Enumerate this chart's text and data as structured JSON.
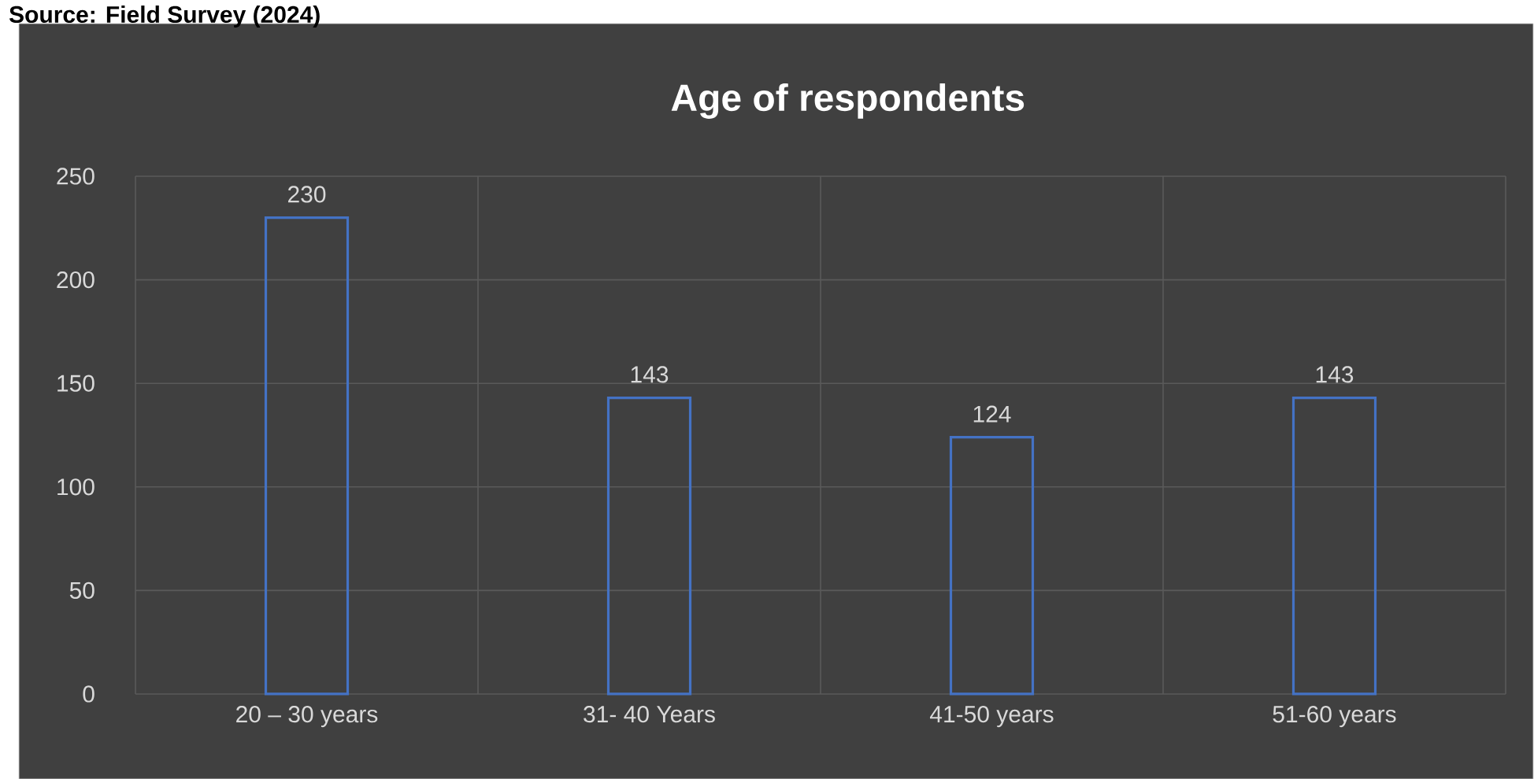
{
  "chart_data": {
    "type": "bar",
    "title": "Age of respondents",
    "annotations": [
      "Source: Field Survey (2024)"
    ],
    "categories": [
      "20 – 30 years",
      "31- 40 Years",
      "41-50 years",
      "51-60 years"
    ],
    "values": [
      230,
      143,
      124,
      143
    ],
    "color": "#4472c4",
    "ylim": [
      0,
      250
    ],
    "yticks": [
      0,
      50,
      100,
      150,
      200,
      250
    ],
    "grid": true,
    "data_labels": true
  }
}
